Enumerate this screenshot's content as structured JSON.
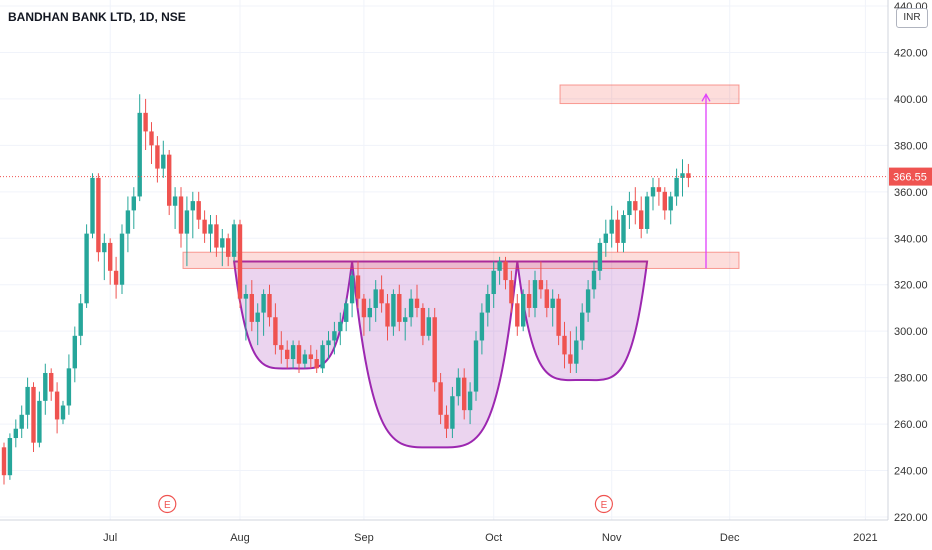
{
  "header": {
    "title": "BANDHAN BANK LTD, 1D, NSE"
  },
  "currency_badge": "INR",
  "price_tag": {
    "label": "366.55",
    "value": 366.55,
    "color": "#ef5350"
  },
  "earnings_marker": "E",
  "chart_data": {
    "type": "candlestick",
    "ylim": [
      220,
      440
    ],
    "y_ticks": [
      {
        "v": 440,
        "label": "440.00"
      },
      {
        "v": 420,
        "label": "420.00"
      },
      {
        "v": 400,
        "label": "400.00"
      },
      {
        "v": 380,
        "label": "380.00"
      },
      {
        "v": 360,
        "label": "360.00"
      },
      {
        "v": 340,
        "label": "340.00"
      },
      {
        "v": 320,
        "label": "320.00"
      },
      {
        "v": 300,
        "label": "300.00"
      },
      {
        "v": 280,
        "label": "280.00"
      },
      {
        "v": 260,
        "label": "260.00"
      },
      {
        "v": 240,
        "label": "240.00"
      },
      {
        "v": 220,
        "label": "220.00"
      }
    ],
    "x_ticks": [
      {
        "i": 18,
        "label": "Jul"
      },
      {
        "i": 40,
        "label": "Aug"
      },
      {
        "i": 61,
        "label": "Sep"
      },
      {
        "i": 83,
        "label": "Oct"
      },
      {
        "i": 103,
        "label": "Nov"
      },
      {
        "i": 123,
        "label": "Dec"
      },
      {
        "i": 146,
        "label": "2021"
      }
    ],
    "up_color": "#26a69a",
    "down_color": "#ef5350",
    "candles": [
      [
        250,
        252,
        234,
        238
      ],
      [
        238,
        256,
        236,
        254
      ],
      [
        254,
        262,
        250,
        258
      ],
      [
        258,
        268,
        254,
        264
      ],
      [
        264,
        280,
        258,
        276
      ],
      [
        276,
        278,
        248,
        252
      ],
      [
        252,
        274,
        250,
        270
      ],
      [
        270,
        286,
        264,
        282
      ],
      [
        282,
        284,
        270,
        274
      ],
      [
        274,
        278,
        256,
        262
      ],
      [
        262,
        270,
        260,
        268
      ],
      [
        268,
        290,
        264,
        284
      ],
      [
        284,
        302,
        278,
        298
      ],
      [
        298,
        316,
        294,
        312
      ],
      [
        312,
        346,
        310,
        342
      ],
      [
        342,
        368,
        340,
        366
      ],
      [
        366,
        368,
        330,
        334
      ],
      [
        334,
        342,
        322,
        338
      ],
      [
        338,
        340,
        320,
        326
      ],
      [
        326,
        332,
        314,
        320
      ],
      [
        320,
        346,
        316,
        342
      ],
      [
        342,
        358,
        334,
        352
      ],
      [
        352,
        362,
        344,
        358
      ],
      [
        358,
        402,
        356,
        394
      ],
      [
        394,
        400,
        378,
        386
      ],
      [
        386,
        390,
        372,
        380
      ],
      [
        380,
        384,
        364,
        370
      ],
      [
        370,
        382,
        366,
        376
      ],
      [
        376,
        378,
        350,
        354
      ],
      [
        354,
        362,
        344,
        358
      ],
      [
        358,
        362,
        336,
        342
      ],
      [
        342,
        358,
        328,
        352
      ],
      [
        352,
        360,
        340,
        356
      ],
      [
        356,
        360,
        344,
        348
      ],
      [
        348,
        352,
        338,
        342
      ],
      [
        342,
        350,
        334,
        346
      ],
      [
        346,
        350,
        332,
        336
      ],
      [
        336,
        344,
        328,
        340
      ],
      [
        340,
        342,
        328,
        332
      ],
      [
        332,
        348,
        330,
        346
      ],
      [
        346,
        348,
        310,
        314
      ],
      [
        314,
        320,
        296,
        316
      ],
      [
        316,
        322,
        300,
        304
      ],
      [
        304,
        312,
        294,
        308
      ],
      [
        308,
        318,
        298,
        316
      ],
      [
        316,
        320,
        302,
        306
      ],
      [
        306,
        312,
        290,
        294
      ],
      [
        294,
        300,
        286,
        292
      ],
      [
        292,
        296,
        284,
        288
      ],
      [
        288,
        296,
        284,
        294
      ],
      [
        294,
        296,
        282,
        286
      ],
      [
        286,
        292,
        284,
        290
      ],
      [
        290,
        294,
        284,
        288
      ],
      [
        288,
        292,
        282,
        284
      ],
      [
        284,
        296,
        282,
        294
      ],
      [
        294,
        300,
        288,
        296
      ],
      [
        296,
        304,
        290,
        300
      ],
      [
        300,
        308,
        294,
        304
      ],
      [
        304,
        314,
        300,
        312
      ],
      [
        312,
        326,
        306,
        324
      ],
      [
        324,
        330,
        310,
        314
      ],
      [
        314,
        316,
        298,
        306
      ],
      [
        306,
        314,
        300,
        310
      ],
      [
        310,
        322,
        304,
        318
      ],
      [
        318,
        324,
        308,
        312
      ],
      [
        312,
        316,
        296,
        302
      ],
      [
        302,
        318,
        298,
        316
      ],
      [
        316,
        320,
        300,
        304
      ],
      [
        304,
        310,
        296,
        306
      ],
      [
        306,
        318,
        302,
        314
      ],
      [
        314,
        320,
        306,
        310
      ],
      [
        310,
        312,
        294,
        298
      ],
      [
        298,
        310,
        296,
        306
      ],
      [
        306,
        310,
        274,
        278
      ],
      [
        278,
        282,
        260,
        264
      ],
      [
        264,
        268,
        254,
        258
      ],
      [
        258,
        276,
        254,
        272
      ],
      [
        272,
        284,
        268,
        280
      ],
      [
        280,
        284,
        262,
        266
      ],
      [
        266,
        278,
        260,
        274
      ],
      [
        274,
        300,
        270,
        296
      ],
      [
        296,
        312,
        290,
        308
      ],
      [
        308,
        320,
        302,
        316
      ],
      [
        316,
        330,
        310,
        326
      ],
      [
        326,
        332,
        320,
        330
      ],
      [
        330,
        332,
        318,
        322
      ],
      [
        322,
        326,
        308,
        312
      ],
      [
        312,
        316,
        298,
        302
      ],
      [
        302,
        318,
        300,
        316
      ],
      [
        316,
        322,
        306,
        310
      ],
      [
        310,
        326,
        306,
        322
      ],
      [
        322,
        330,
        314,
        318
      ],
      [
        318,
        322,
        306,
        310
      ],
      [
        310,
        318,
        302,
        314
      ],
      [
        314,
        316,
        294,
        298
      ],
      [
        298,
        304,
        284,
        290
      ],
      [
        290,
        300,
        282,
        286
      ],
      [
        286,
        302,
        282,
        296
      ],
      [
        296,
        312,
        292,
        308
      ],
      [
        308,
        322,
        304,
        318
      ],
      [
        318,
        330,
        314,
        326
      ],
      [
        326,
        340,
        322,
        338
      ],
      [
        338,
        348,
        332,
        342
      ],
      [
        342,
        354,
        336,
        348
      ],
      [
        348,
        352,
        334,
        338
      ],
      [
        338,
        352,
        334,
        350
      ],
      [
        350,
        360,
        344,
        356
      ],
      [
        356,
        362,
        346,
        352
      ],
      [
        352,
        358,
        340,
        344
      ],
      [
        344,
        360,
        342,
        358
      ],
      [
        358,
        366,
        352,
        362
      ],
      [
        362,
        366,
        354,
        360
      ],
      [
        360,
        362,
        348,
        352
      ],
      [
        352,
        360,
        346,
        358
      ],
      [
        358,
        370,
        354,
        366
      ],
      [
        366,
        374,
        358,
        368
      ],
      [
        368,
        372,
        362,
        366
      ]
    ]
  },
  "annotations": {
    "neckline_value": 330,
    "target_value": 402
  }
}
